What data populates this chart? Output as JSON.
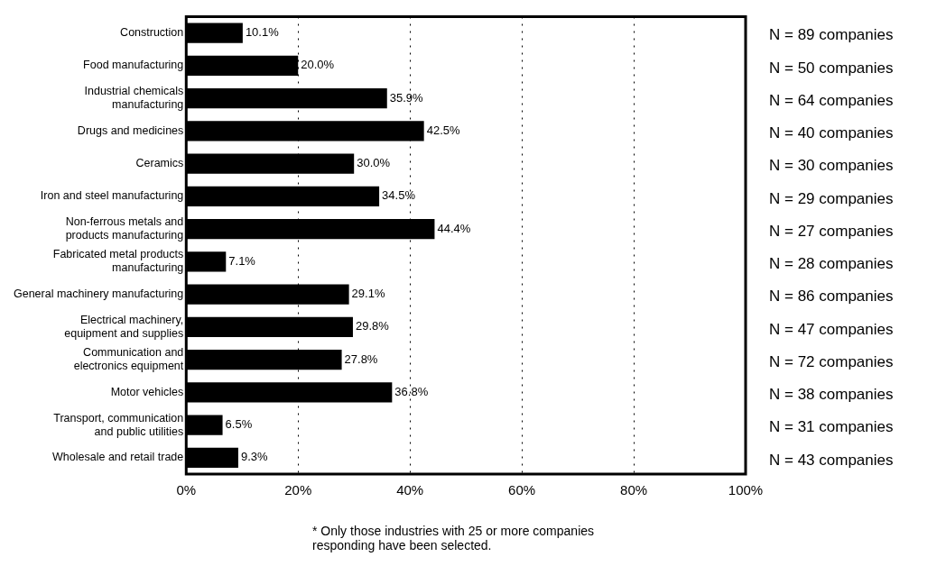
{
  "chart_data": {
    "type": "bar",
    "orientation": "horizontal",
    "categories": [
      "Construction",
      "Food manufacturing",
      "Industrial chemicals\nmanufacturing",
      "Drugs and medicines",
      "Ceramics",
      "Iron and steel manufacturing",
      "Non-ferrous metals and\nproducts manufacturing",
      "Fabricated metal products\nmanufacturing",
      "General machinery manufacturing",
      "Electrical machinery,\nequipment and supplies",
      "Communication and\nelectronics equipment",
      "Motor vehicles",
      "Transport, communication\nand public utilities",
      "Wholesale and retail trade"
    ],
    "values": [
      10.1,
      20.0,
      35.9,
      42.5,
      30.0,
      34.5,
      44.4,
      7.1,
      29.1,
      29.8,
      27.8,
      36.8,
      6.5,
      9.3
    ],
    "value_labels": [
      "10.1%",
      "20.0%",
      "35.9%",
      "42.5%",
      "30.0%",
      "34.5%",
      "44.4%",
      "7.1%",
      "29.1%",
      "29.8%",
      "27.8%",
      "36.8%",
      "6.5%",
      "9.3%"
    ],
    "color": "#000000",
    "xlim": [
      0,
      100
    ],
    "xticks": [
      {
        "value": 0,
        "label": "0%"
      },
      {
        "value": 20,
        "label": "20%"
      },
      {
        "value": 40,
        "label": "40%"
      },
      {
        "value": 60,
        "label": "60%"
      },
      {
        "value": 80,
        "label": "80%"
      },
      {
        "value": 100,
        "label": "100%"
      }
    ],
    "grid": "x",
    "legend": false,
    "line_style": "dotted",
    "annotations": [
      "N = 89 companies",
      "N = 50 companies",
      "N = 64 companies",
      "N = 40 companies",
      "N = 30 companies",
      "N = 29 companies",
      "N = 27 companies",
      "N = 28 companies",
      "N = 86 companies",
      "N = 47 companies",
      "N = 72 companies",
      "N = 38 companies",
      "N = 31 companies",
      "N = 43 companies",
      "* Only those industries with 25 or more companies\nresponding have been selected."
    ]
  }
}
